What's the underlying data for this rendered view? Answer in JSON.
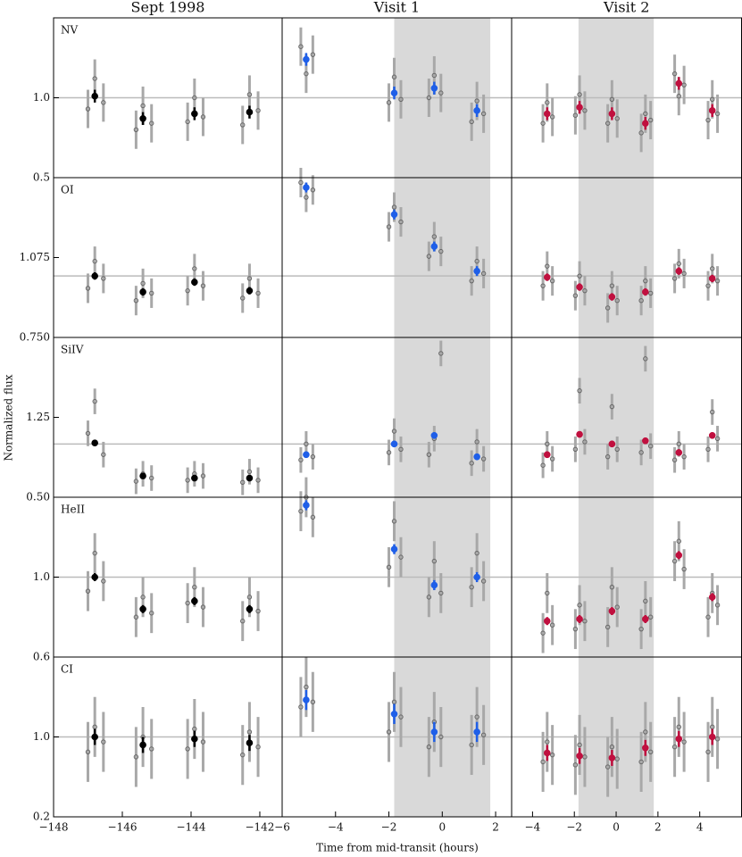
{
  "xlabel": "Time from mid-transit (hours)",
  "ylabel": "Normalized flux",
  "chart_data": [
    {
      "type": "scatter",
      "title": "Sept 1998",
      "label": "NV",
      "xlim": [
        -148,
        -141.35
      ],
      "ylim": [
        0.5,
        1.5
      ],
      "yticks": [
        0.5,
        {
          "value": 1,
          "label": "1.0"
        }
      ],
      "reference": 1,
      "series": [
        {
          "color": "#8c8c8c",
          "error": 0.12,
          "x": [
            -147.0,
            -146.8,
            -146.55,
            -145.6,
            -145.4,
            -145.15,
            -144.1,
            -143.9,
            -143.65,
            -142.5,
            -142.3,
            -142.05
          ],
          "values": [
            0.93,
            1.12,
            0.97,
            0.8,
            0.95,
            0.84,
            0.85,
            1.0,
            0.88,
            0.83,
            1.02,
            0.92
          ]
        },
        {
          "color": "#000000",
          "error": 0.04,
          "x": [
            -146.8,
            -145.4,
            -143.9,
            -142.3
          ],
          "values": [
            1.01,
            0.87,
            0.9,
            0.91
          ]
        }
      ]
    },
    {
      "type": "scatter",
      "title": "Visit 1",
      "xlim": [
        -6,
        2.6
      ],
      "ylim": [
        0.5,
        1.5
      ],
      "reference": 1,
      "transit": [
        -1.8,
        1.8
      ],
      "series": [
        {
          "color": "#8c8c8c",
          "error": 0.12,
          "x": [
            -5.3,
            -5.1,
            -4.85,
            -2.0,
            -1.8,
            -1.55,
            -0.5,
            -0.3,
            -0.05,
            1.1,
            1.3,
            1.55
          ],
          "values": [
            1.32,
            1.15,
            1.27,
            0.97,
            1.13,
            0.99,
            1.0,
            1.14,
            1.03,
            0.85,
            0.98,
            0.9
          ]
        },
        {
          "color": "#1f5fe8",
          "error": 0.04,
          "x": [
            -5.1,
            -1.8,
            -0.3,
            1.3
          ],
          "values": [
            1.24,
            1.03,
            1.06,
            0.92
          ]
        }
      ]
    },
    {
      "type": "scatter",
      "title": "Visit 2",
      "xlim": [
        -5,
        6
      ],
      "ylim": [
        0.5,
        1.5
      ],
      "reference": 1,
      "transit": [
        -1.8,
        1.8
      ],
      "series": [
        {
          "color": "#8c8c8c",
          "error": 0.12,
          "x": [
            -3.5,
            -3.3,
            -3.05,
            -1.95,
            -1.75,
            -1.5,
            -0.4,
            -0.2,
            0.05,
            1.2,
            1.4,
            1.65,
            2.8,
            3.0,
            3.25,
            4.4,
            4.6,
            4.85
          ],
          "values": [
            0.84,
            0.97,
            0.88,
            0.89,
            1.02,
            0.92,
            0.84,
            0.99,
            0.87,
            0.78,
            0.9,
            0.86,
            1.15,
            1.01,
            1.08,
            0.86,
            0.99,
            0.9
          ]
        },
        {
          "color": "#c0103f",
          "error": 0.04,
          "x": [
            -3.3,
            -1.75,
            -0.2,
            1.4,
            3.0,
            4.6
          ],
          "values": [
            0.9,
            0.94,
            0.9,
            0.84,
            1.09,
            0.92
          ]
        }
      ]
    },
    {
      "type": "scatter",
      "label": "OI",
      "xlim": [
        -148,
        -141.35
      ],
      "ylim": [
        0.75,
        1.4
      ],
      "yticks": [
        {
          "value": 0.75,
          "label": "0.750"
        },
        1.075
      ],
      "reference": 1,
      "series": [
        {
          "color": "#8c8c8c",
          "error": 0.06,
          "x": [
            -147.0,
            -146.8,
            -146.55,
            -145.6,
            -145.4,
            -145.15,
            -144.1,
            -143.9,
            -143.65,
            -142.5,
            -142.3,
            -142.05
          ],
          "values": [
            0.95,
            1.06,
            0.99,
            0.9,
            0.97,
            0.93,
            0.94,
            1.03,
            0.96,
            0.91,
            0.99,
            0.93
          ]
        },
        {
          "color": "#000000",
          "error": 0.015,
          "x": [
            -146.8,
            -145.4,
            -143.9,
            -142.3
          ],
          "values": [
            1.0,
            0.935,
            0.975,
            0.94
          ]
        }
      ]
    },
    {
      "type": "scatter",
      "xlim": [
        -6,
        2.6
      ],
      "ylim": [
        0.75,
        1.4
      ],
      "reference": 1,
      "transit": [
        -1.8,
        1.8
      ],
      "series": [
        {
          "color": "#8c8c8c",
          "error": 0.06,
          "x": [
            -5.3,
            -5.1,
            -4.85,
            -2.0,
            -1.8,
            -1.55,
            -0.5,
            -0.3,
            -0.05,
            1.1,
            1.3,
            1.55
          ],
          "values": [
            1.38,
            1.32,
            1.35,
            1.2,
            1.28,
            1.22,
            1.08,
            1.16,
            1.1,
            0.98,
            1.06,
            1.01
          ]
        },
        {
          "color": "#1f5fe8",
          "error": 0.02,
          "x": [
            -5.1,
            -1.8,
            -0.3,
            1.3
          ],
          "values": [
            1.36,
            1.25,
            1.12,
            1.02
          ]
        }
      ]
    },
    {
      "type": "scatter",
      "xlim": [
        -5,
        6
      ],
      "ylim": [
        0.75,
        1.4
      ],
      "reference": 1,
      "transit": [
        -1.8,
        1.8
      ],
      "series": [
        {
          "color": "#8c8c8c",
          "error": 0.06,
          "x": [
            -3.5,
            -3.3,
            -3.05,
            -1.95,
            -1.75,
            -1.5,
            -0.4,
            -0.2,
            0.05,
            1.2,
            1.4,
            1.65,
            2.8,
            3.0,
            3.25,
            4.4,
            4.6,
            4.85
          ],
          "values": [
            0.96,
            1.04,
            0.98,
            0.92,
            1.0,
            0.94,
            0.87,
            0.96,
            0.9,
            0.9,
            0.98,
            0.93,
            0.99,
            1.05,
            1.01,
            0.96,
            1.03,
            0.98
          ]
        },
        {
          "color": "#c0103f",
          "error": 0.015,
          "x": [
            -3.3,
            -1.75,
            -0.2,
            1.4,
            3.0,
            4.6
          ],
          "values": [
            0.995,
            0.955,
            0.915,
            0.935,
            1.02,
            0.99
          ]
        }
      ]
    },
    {
      "type": "scatter",
      "label": "SiIV",
      "xlim": [
        -148,
        -141.35
      ],
      "ylim": [
        0.5,
        2.0
      ],
      "yticks": [
        {
          "value": 0.5,
          "label": "0.50"
        },
        1.25
      ],
      "reference": 1,
      "series": [
        {
          "color": "#8c8c8c",
          "error": 0.12,
          "x": [
            -147.0,
            -146.8,
            -146.55,
            -145.6,
            -145.4,
            -145.15,
            -144.1,
            -143.9,
            -143.65,
            -142.5,
            -142.3,
            -142.05
          ],
          "values": [
            1.1,
            1.4,
            0.9,
            0.65,
            0.72,
            0.68,
            0.66,
            0.72,
            0.7,
            0.64,
            0.74,
            0.66
          ]
        },
        {
          "color": "#000000",
          "error": 0.02,
          "x": [
            -146.8,
            -145.4,
            -143.9,
            -142.3
          ],
          "values": [
            1.01,
            0.7,
            0.68,
            0.68
          ]
        }
      ]
    },
    {
      "type": "scatter",
      "xlim": [
        -6,
        2.6
      ],
      "ylim": [
        0.5,
        2.0
      ],
      "reference": 1,
      "transit": [
        -1.8,
        1.8
      ],
      "series": [
        {
          "color": "#8c8c8c",
          "error": 0.12,
          "x": [
            -5.3,
            -5.1,
            -4.85,
            -2.0,
            -1.8,
            -1.55,
            -0.5,
            -0.3,
            -0.05,
            1.1,
            1.3,
            1.55
          ],
          "values": [
            0.85,
            1.0,
            0.88,
            0.92,
            1.12,
            0.95,
            0.9,
            1.05,
            1.85,
            0.82,
            1.02,
            0.86
          ]
        },
        {
          "color": "#1f5fe8",
          "error": 0.03,
          "x": [
            -5.1,
            -1.8,
            -0.3,
            1.3
          ],
          "values": [
            0.9,
            1.0,
            1.08,
            0.88
          ]
        }
      ]
    },
    {
      "type": "scatter",
      "xlim": [
        -5,
        6
      ],
      "ylim": [
        0.5,
        2.0
      ],
      "reference": 1,
      "transit": [
        -1.8,
        1.8
      ],
      "series": [
        {
          "color": "#8c8c8c",
          "error": 0.12,
          "x": [
            -3.5,
            -3.3,
            -3.05,
            -1.95,
            -1.75,
            -1.5,
            -0.4,
            -0.2,
            0.05,
            1.2,
            1.4,
            1.65,
            2.8,
            3.0,
            3.25,
            4.4,
            4.6,
            4.85
          ],
          "values": [
            0.8,
            1.0,
            0.86,
            0.95,
            1.5,
            1.02,
            0.88,
            1.35,
            0.95,
            0.92,
            1.8,
            0.98,
            0.85,
            1.0,
            0.88,
            0.95,
            1.3,
            1.05
          ]
        },
        {
          "color": "#c0103f",
          "error": 0.03,
          "x": [
            -3.3,
            -1.75,
            -0.2,
            1.4,
            3.0,
            4.6
          ],
          "values": [
            0.9,
            1.09,
            1.0,
            1.03,
            0.92,
            1.08
          ]
        }
      ]
    },
    {
      "type": "scatter",
      "label": "HeII",
      "xlim": [
        -148,
        -141.35
      ],
      "ylim": [
        0.6,
        1.4
      ],
      "yticks": [
        0.6,
        {
          "value": 1,
          "label": "1.0"
        }
      ],
      "reference": 1,
      "series": [
        {
          "color": "#8c8c8c",
          "error": 0.1,
          "x": [
            -147.0,
            -146.8,
            -146.55,
            -145.6,
            -145.4,
            -145.15,
            -144.1,
            -143.9,
            -143.65,
            -142.5,
            -142.3,
            -142.05
          ],
          "values": [
            0.93,
            1.12,
            0.98,
            0.8,
            0.9,
            0.82,
            0.87,
            0.95,
            0.85,
            0.78,
            0.9,
            0.83
          ]
        },
        {
          "color": "#000000",
          "error": 0.02,
          "x": [
            -146.8,
            -145.4,
            -143.9,
            -142.3
          ],
          "values": [
            1.0,
            0.84,
            0.88,
            0.84
          ]
        }
      ]
    },
    {
      "type": "scatter",
      "xlim": [
        -6,
        2.6
      ],
      "ylim": [
        0.6,
        1.4
      ],
      "reference": 1,
      "transit": [
        -1.8,
        1.8
      ],
      "series": [
        {
          "color": "#8c8c8c",
          "error": 0.1,
          "x": [
            -5.3,
            -5.1,
            -4.85,
            -2.0,
            -1.8,
            -1.55,
            -0.5,
            -0.3,
            -0.05,
            1.1,
            1.3,
            1.55
          ],
          "values": [
            1.33,
            1.4,
            1.3,
            1.05,
            1.28,
            1.1,
            0.9,
            1.08,
            0.92,
            0.95,
            1.12,
            0.98
          ]
        },
        {
          "color": "#1f5fe8",
          "error": 0.025,
          "x": [
            -5.1,
            -1.8,
            -0.3,
            1.3
          ],
          "values": [
            1.36,
            1.14,
            0.96,
            1.0
          ]
        }
      ]
    },
    {
      "type": "scatter",
      "xlim": [
        -5,
        6
      ],
      "ylim": [
        0.6,
        1.4
      ],
      "reference": 1,
      "transit": [
        -1.8,
        1.8
      ],
      "series": [
        {
          "color": "#8c8c8c",
          "error": 0.1,
          "x": [
            -3.5,
            -3.3,
            -3.05,
            -1.95,
            -1.75,
            -1.5,
            -0.4,
            -0.2,
            0.05,
            1.2,
            1.4,
            1.65,
            2.8,
            3.0,
            3.25,
            4.4,
            4.6,
            4.85
          ],
          "values": [
            0.72,
            0.92,
            0.76,
            0.74,
            0.86,
            0.78,
            0.75,
            0.95,
            0.85,
            0.74,
            0.88,
            0.8,
            1.08,
            1.18,
            1.04,
            0.8,
            0.92,
            0.86
          ]
        },
        {
          "color": "#c0103f",
          "error": 0.02,
          "x": [
            -3.3,
            -1.75,
            -0.2,
            1.4,
            3.0,
            4.6
          ],
          "values": [
            0.78,
            0.79,
            0.83,
            0.79,
            1.11,
            0.9
          ]
        }
      ]
    },
    {
      "type": "scatter",
      "label": "CI",
      "xlim": [
        -148,
        -141.35
      ],
      "ylim": [
        0.2,
        1.8
      ],
      "yticks": [
        0.2,
        {
          "value": 1,
          "label": "1.0"
        }
      ],
      "reference": 1,
      "xticks": [
        {
          "value": -148,
          "label": "−148"
        },
        {
          "value": -146,
          "label": "−146"
        },
        {
          "value": -144,
          "label": "−144"
        },
        {
          "value": -142,
          "label": "−142"
        }
      ],
      "series": [
        {
          "color": "#8c8c8c",
          "error": 0.3,
          "x": [
            -147.0,
            -146.8,
            -146.55,
            -145.6,
            -145.4,
            -145.15,
            -144.1,
            -143.9,
            -143.65,
            -142.5,
            -142.3,
            -142.05
          ],
          "values": [
            0.85,
            1.1,
            0.95,
            0.8,
            1.0,
            0.88,
            0.88,
            1.08,
            0.95,
            0.82,
            1.05,
            0.9
          ]
        },
        {
          "color": "#000000",
          "error": 0.08,
          "x": [
            -146.8,
            -145.4,
            -143.9,
            -142.3
          ],
          "values": [
            1.0,
            0.92,
            0.98,
            0.94
          ]
        }
      ]
    },
    {
      "type": "scatter",
      "xlim": [
        -6,
        2.6
      ],
      "ylim": [
        0.2,
        1.8
      ],
      "reference": 1,
      "transit": [
        -1.8,
        1.8
      ],
      "xticks": [
        {
          "value": -6,
          "label": "−6"
        },
        {
          "value": -4,
          "label": "−4"
        },
        {
          "value": -2,
          "label": "−2"
        },
        0,
        2
      ],
      "series": [
        {
          "color": "#8c8c8c",
          "error": 0.3,
          "x": [
            -5.3,
            -5.1,
            -4.85,
            -2.0,
            -1.8,
            -1.55,
            -0.5,
            -0.3,
            -0.05,
            1.1,
            1.3,
            1.55
          ],
          "values": [
            1.3,
            1.5,
            1.35,
            1.05,
            1.35,
            1.2,
            0.9,
            1.15,
            1.0,
            0.92,
            1.2,
            1.02
          ]
        },
        {
          "color": "#1f5fe8",
          "error": 0.1,
          "x": [
            -5.1,
            -1.8,
            -0.3,
            1.3
          ],
          "values": [
            1.37,
            1.23,
            1.05,
            1.05
          ]
        }
      ]
    },
    {
      "type": "scatter",
      "xlim": [
        -5,
        6
      ],
      "ylim": [
        0.2,
        1.8
      ],
      "reference": 1,
      "transit": [
        -1.8,
        1.8
      ],
      "xticks": [
        {
          "value": -4,
          "label": "−4"
        },
        {
          "value": -2,
          "label": "−2"
        },
        0,
        2,
        4
      ],
      "series": [
        {
          "color": "#8c8c8c",
          "error": 0.3,
          "x": [
            -3.5,
            -3.3,
            -3.05,
            -1.95,
            -1.75,
            -1.5,
            -0.4,
            -0.2,
            0.05,
            1.2,
            1.4,
            1.65,
            2.8,
            3.0,
            3.25,
            4.4,
            4.6,
            4.85
          ],
          "values": [
            0.75,
            0.95,
            0.82,
            0.72,
            0.92,
            0.8,
            0.7,
            0.9,
            0.78,
            0.75,
            1.05,
            0.85,
            0.9,
            1.1,
            0.95,
            0.85,
            1.1,
            0.98
          ]
        },
        {
          "color": "#c0103f",
          "error": 0.08,
          "x": [
            -3.3,
            -1.75,
            -0.2,
            1.4,
            3.0,
            4.6
          ],
          "values": [
            0.84,
            0.81,
            0.79,
            0.89,
            0.98,
            1.0
          ]
        }
      ]
    }
  ]
}
